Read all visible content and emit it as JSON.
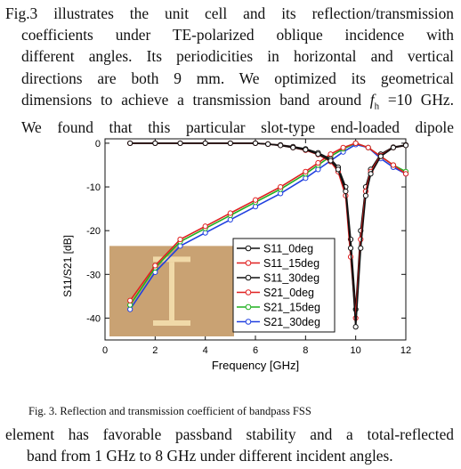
{
  "paragraph1": {
    "lines": [
      "Fig.3 illustrates the unit cell and its reflection/transmission",
      "coefficients under TE-polarized oblique incidence with",
      "different angles. Its periodicities in horizontal and vertical",
      "directions are both 9 mm. We optimized its geometrical",
      "dimensions to achieve a transmission band around ",
      "We found that this particular slot-type end-loaded dipole"
    ],
    "fh_symbol": "f",
    "fh_subscript": "h",
    "fh_value": " =10 GHz."
  },
  "caption": "Fig. 3.  Reflection and transmission coefficient of bandpass FSS",
  "paragraph2": {
    "lines": [
      "element has favorable passband stability and a total-reflected",
      "band from 1 GHz to 8 GHz under different incident angles."
    ]
  },
  "chart_data": {
    "type": "line",
    "xlabel": "Frequency [GHz]",
    "ylabel": "S11/S21 [dB]",
    "xlim": [
      0,
      12
    ],
    "ylim": [
      -45,
      1
    ],
    "xticks": [
      0,
      2,
      4,
      6,
      8,
      10,
      12
    ],
    "yticks": [
      0,
      -10,
      -20,
      -30,
      -40
    ],
    "grid": false,
    "legend_position": "bottom-right",
    "series": [
      {
        "name": "S11_0deg",
        "color": "#111111",
        "x": [
          1,
          2,
          3,
          4,
          5,
          6,
          6.5,
          7,
          7.5,
          8,
          8.5,
          9,
          9.3,
          9.6,
          9.8,
          10,
          10.2,
          10.4,
          10.6,
          11,
          11.5,
          12
        ],
        "y": [
          0,
          0,
          0,
          0,
          0,
          0,
          -0.2,
          -0.5,
          -1,
          -1.5,
          -2.5,
          -4,
          -6,
          -11,
          -24,
          -42,
          -24,
          -12,
          -7,
          -3,
          -1,
          -0.5
        ]
      },
      {
        "name": "S11_15deg",
        "color": "#e02020",
        "x": [
          1,
          2,
          3,
          4,
          5,
          6,
          6.5,
          7,
          7.5,
          8,
          8.5,
          9,
          9.3,
          9.6,
          9.8,
          10,
          10.2,
          10.4,
          10.6,
          11,
          11.5,
          12
        ],
        "y": [
          0,
          0,
          0,
          0,
          0,
          0,
          -0.2,
          -0.5,
          -1,
          -1.6,
          -2.6,
          -4.2,
          -6.5,
          -12,
          -26,
          -40,
          -22,
          -11,
          -6.5,
          -2.8,
          -1,
          -0.5
        ]
      },
      {
        "name": "S11_30deg",
        "color": "#111111",
        "x": [
          1,
          2,
          3,
          4,
          5,
          6,
          6.5,
          7,
          7.5,
          8,
          8.5,
          9,
          9.3,
          9.6,
          9.8,
          10,
          10.2,
          10.4,
          10.6,
          11,
          11.5,
          12
        ],
        "y": [
          0,
          0,
          0,
          0,
          0,
          0,
          -0.2,
          -0.4,
          -0.8,
          -1.3,
          -2.2,
          -3.6,
          -5.5,
          -10,
          -22,
          -38,
          -20,
          -10,
          -6,
          -2.5,
          -0.9,
          -0.4
        ]
      },
      {
        "name": "S21_0deg",
        "color": "#e02020",
        "x": [
          1,
          2,
          3,
          4,
          5,
          6,
          7,
          8,
          8.5,
          9,
          9.5,
          10,
          10.5,
          11,
          11.5,
          12
        ],
        "y": [
          -36,
          -28,
          -22,
          -19,
          -16,
          -13,
          -10,
          -6.5,
          -4.5,
          -2.5,
          -1,
          0,
          -1,
          -3,
          -5,
          -7
        ]
      },
      {
        "name": "S21_15deg",
        "color": "#20b020",
        "x": [
          1,
          2,
          3,
          4,
          5,
          6,
          7,
          8,
          8.5,
          9,
          9.5,
          10,
          10.5,
          11,
          11.5,
          12
        ],
        "y": [
          -37,
          -28.5,
          -22.5,
          -19.5,
          -16.5,
          -13.5,
          -10.5,
          -7,
          -5,
          -3,
          -1.3,
          0,
          -1,
          -3,
          -5,
          -6.5
        ]
      },
      {
        "name": "S21_30deg",
        "color": "#2040e0",
        "x": [
          1,
          2,
          3,
          4,
          5,
          6,
          7,
          8,
          8.5,
          9,
          9.5,
          10,
          10.5,
          11,
          11.5,
          12
        ],
        "y": [
          -38,
          -29.5,
          -23.5,
          -20.5,
          -17.5,
          -14.5,
          -11.5,
          -8,
          -6,
          -4,
          -2,
          -0.3,
          -1,
          -3.5,
          -5.5,
          -7
        ]
      }
    ]
  },
  "inset": {
    "fill": "#c9a273",
    "dipole_color": "#f0d9a8"
  }
}
